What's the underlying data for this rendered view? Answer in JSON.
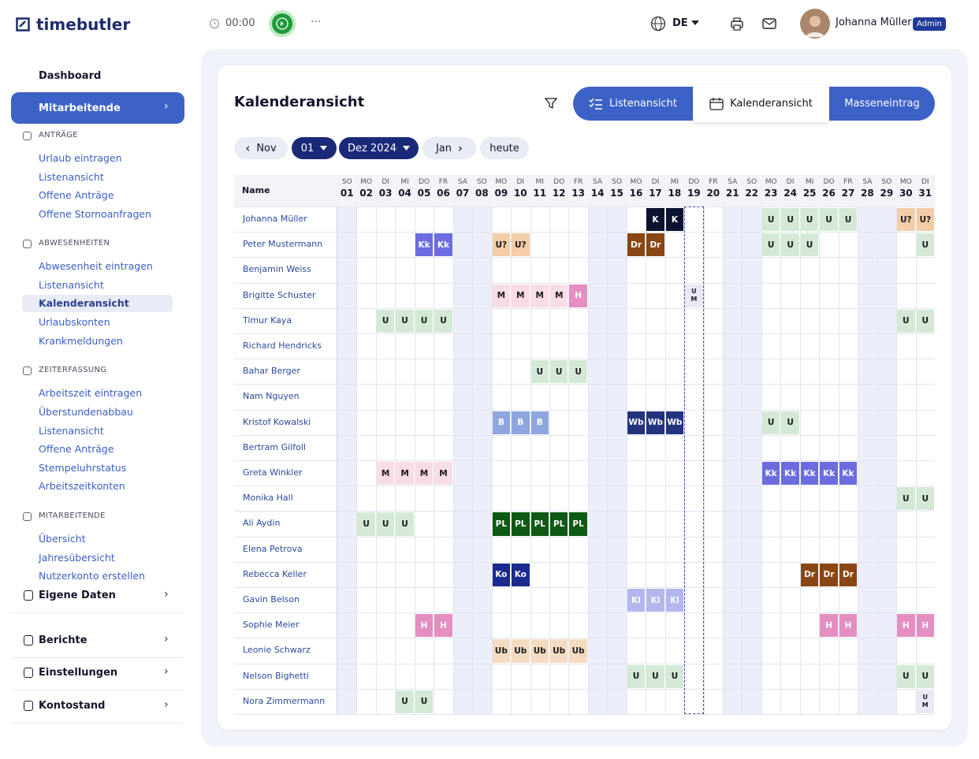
{
  "header": {
    "brand": "timebutler",
    "timer": "00:00",
    "language": "DE",
    "user_name": "Johanna Müller",
    "role": "Admin"
  },
  "sidebar": {
    "top": [
      {
        "label": "Dashboard"
      },
      {
        "label": "Mitarbeitende",
        "active": true
      }
    ],
    "sections": [
      {
        "title": "ANTRÄGE",
        "items": [
          "Urlaub eintragen",
          "Listenansicht",
          "Offene Anträge",
          "Offene Stornoanfragen"
        ]
      },
      {
        "title": "ABWESENHEITEN",
        "items": [
          "Abwesenheit eintragen",
          "Listenansicht",
          {
            "label": "Kalenderansicht",
            "active": true
          },
          "Urlaubskonten",
          "Krankmeldungen"
        ]
      },
      {
        "title": "ZEITERFASSUNG",
        "items": [
          "Arbeitszeit eintragen",
          "Überstundenabbau",
          "Listenansicht",
          "Offene Anträge",
          "Stempeluhrstatus",
          "Arbeitszeitkonten"
        ]
      },
      {
        "title": "MITARBEITENDE",
        "items": [
          "Übersicht",
          "Jahresübersicht",
          "Nutzerkonto erstellen"
        ]
      }
    ],
    "bottom": [
      "Eigene Daten",
      "Berichte",
      "Einstellungen",
      "Kontostand"
    ]
  },
  "main": {
    "title": "Kalenderansicht",
    "tabs": [
      "Listenansicht",
      "Kalenderansicht",
      "Masseneintrag"
    ],
    "nav": {
      "previous": "Nov",
      "day": "01",
      "month": "Dez 2024",
      "next": "Jan",
      "today": "heute"
    }
  },
  "calendar": {
    "name_header": "Name",
    "days": [
      {
        "weekday": "SO",
        "day": "01",
        "weekend": true
      },
      {
        "weekday": "MO",
        "day": "02"
      },
      {
        "weekday": "DI",
        "day": "03"
      },
      {
        "weekday": "MI",
        "day": "04"
      },
      {
        "weekday": "DO",
        "day": "05"
      },
      {
        "weekday": "FR",
        "day": "06"
      },
      {
        "weekday": "SA",
        "day": "07",
        "weekend": true
      },
      {
        "weekday": "SO",
        "day": "08",
        "weekend": true
      },
      {
        "weekday": "MO",
        "day": "09"
      },
      {
        "weekday": "DI",
        "day": "10"
      },
      {
        "weekday": "MI",
        "day": "11"
      },
      {
        "weekday": "DO",
        "day": "12"
      },
      {
        "weekday": "FR",
        "day": "13"
      },
      {
        "weekday": "SA",
        "day": "14",
        "weekend": true
      },
      {
        "weekday": "SO",
        "day": "15",
        "weekend": true
      },
      {
        "weekday": "MO",
        "day": "16"
      },
      {
        "weekday": "DI",
        "day": "17"
      },
      {
        "weekday": "MI",
        "day": "18"
      },
      {
        "weekday": "DO",
        "day": "19",
        "today": true
      },
      {
        "weekday": "FR",
        "day": "20"
      },
      {
        "weekday": "SA",
        "day": "21",
        "weekend": true
      },
      {
        "weekday": "SO",
        "day": "22",
        "weekend": true
      },
      {
        "weekday": "MO",
        "day": "23"
      },
      {
        "weekday": "DI",
        "day": "24"
      },
      {
        "weekday": "MI",
        "day": "25"
      },
      {
        "weekday": "DO",
        "day": "26"
      },
      {
        "weekday": "FR",
        "day": "27"
      },
      {
        "weekday": "SA",
        "day": "28",
        "weekend": true
      },
      {
        "weekday": "SO",
        "day": "29",
        "weekend": true
      },
      {
        "weekday": "MO",
        "day": "30"
      },
      {
        "weekday": "DI",
        "day": "31"
      }
    ],
    "colors": {
      "U": [
        "#d3e9d6",
        "#1b1b1b"
      ],
      "U?": [
        "#f2cda8",
        "#1b1b1b"
      ],
      "K": [
        "#0c1230",
        "#ffffff"
      ],
      "Kk": [
        "#6c6ce0",
        "#ffffff"
      ],
      "Dr": [
        "#8a4614",
        "#ffffff"
      ],
      "M": [
        "#f9dce6",
        "#1b1b1b"
      ],
      "H": [
        "#e48ec1",
        "#ffffff"
      ],
      "B": [
        "#8ea6e0",
        "#ffffff"
      ],
      "Wb": [
        "#22337f",
        "#ffffff"
      ],
      "PL": [
        "#0e5913",
        "#ffffff"
      ],
      "Ko": [
        "#1a2a8e",
        "#ffffff"
      ],
      "Kl": [
        "#b3b7ee",
        "#ffffff"
      ],
      "Ub": [
        "#f4dbc1",
        "#1b1b1b"
      ],
      "U M": [
        "#ebe7f6",
        "#1b1b1b"
      ]
    },
    "rows": [
      {
        "name": "Johanna Müller",
        "cells": [
          null,
          null,
          null,
          null,
          null,
          null,
          null,
          null,
          null,
          null,
          null,
          null,
          null,
          null,
          null,
          null,
          "K",
          "K",
          null,
          null,
          null,
          null,
          "U",
          "U",
          "U",
          "U",
          "U",
          null,
          null,
          "U?",
          "U?"
        ]
      },
      {
        "name": "Peter Mustermann",
        "cells": [
          null,
          null,
          null,
          null,
          "Kk",
          "Kk",
          null,
          null,
          "U?",
          "U?",
          null,
          null,
          null,
          null,
          null,
          "Dr",
          "Dr",
          null,
          null,
          null,
          null,
          null,
          "U",
          "U",
          "U",
          null,
          null,
          null,
          null,
          null,
          "U"
        ]
      },
      {
        "name": "Benjamin Weiss",
        "cells": [
          null,
          null,
          null,
          null,
          null,
          null,
          null,
          null,
          null,
          null,
          null,
          null,
          null,
          null,
          null,
          null,
          null,
          null,
          null,
          null,
          null,
          null,
          null,
          null,
          null,
          null,
          null,
          null,
          null,
          null,
          null
        ]
      },
      {
        "name": "Brigitte Schuster",
        "cells": [
          null,
          null,
          null,
          null,
          null,
          null,
          null,
          null,
          "M",
          "M",
          "M",
          "M",
          "H",
          null,
          null,
          null,
          null,
          null,
          "U M",
          null,
          null,
          null,
          null,
          null,
          null,
          null,
          null,
          null,
          null,
          null,
          null
        ]
      },
      {
        "name": "Timur Kaya",
        "cells": [
          null,
          null,
          "U",
          "U",
          "U",
          "U",
          null,
          null,
          null,
          null,
          null,
          null,
          null,
          null,
          null,
          null,
          null,
          null,
          null,
          null,
          null,
          null,
          null,
          null,
          null,
          null,
          null,
          null,
          null,
          "U",
          "U"
        ]
      },
      {
        "name": "Richard Hendricks",
        "cells": [
          null,
          null,
          null,
          null,
          null,
          null,
          null,
          null,
          null,
          null,
          null,
          null,
          null,
          null,
          null,
          null,
          null,
          null,
          null,
          null,
          null,
          null,
          null,
          null,
          null,
          null,
          null,
          null,
          null,
          null,
          null
        ]
      },
      {
        "name": "Bahar Berger",
        "cells": [
          null,
          null,
          null,
          null,
          null,
          null,
          null,
          null,
          null,
          null,
          "U",
          "U",
          "U",
          null,
          null,
          null,
          null,
          null,
          null,
          null,
          null,
          null,
          null,
          null,
          null,
          null,
          null,
          null,
          null,
          null,
          null
        ]
      },
      {
        "name": "Nam Nguyen",
        "cells": [
          null,
          null,
          null,
          null,
          null,
          null,
          null,
          null,
          null,
          null,
          null,
          null,
          null,
          null,
          null,
          null,
          null,
          null,
          null,
          null,
          null,
          null,
          null,
          null,
          null,
          null,
          null,
          null,
          null,
          null,
          null
        ]
      },
      {
        "name": "Kristof Kowalski",
        "cells": [
          null,
          null,
          null,
          null,
          null,
          null,
          null,
          null,
          "B",
          "B",
          "B",
          null,
          null,
          null,
          null,
          "Wb",
          "Wb",
          "Wb",
          null,
          null,
          null,
          null,
          "U",
          "U",
          null,
          null,
          null,
          null,
          null,
          null,
          null
        ]
      },
      {
        "name": "Bertram Gilfoll",
        "cells": [
          null,
          null,
          null,
          null,
          null,
          null,
          null,
          null,
          null,
          null,
          null,
          null,
          null,
          null,
          null,
          null,
          null,
          null,
          null,
          null,
          null,
          null,
          null,
          null,
          null,
          null,
          null,
          null,
          null,
          null,
          null
        ]
      },
      {
        "name": "Greta Winkler",
        "cells": [
          null,
          null,
          "M",
          "M",
          "M",
          "M",
          null,
          null,
          null,
          null,
          null,
          null,
          null,
          null,
          null,
          null,
          null,
          null,
          null,
          null,
          null,
          null,
          "Kk",
          "Kk",
          "Kk",
          "Kk",
          "Kk",
          null,
          null,
          null,
          null
        ]
      },
      {
        "name": "Monika Hall",
        "cells": [
          null,
          null,
          null,
          null,
          null,
          null,
          null,
          null,
          null,
          null,
          null,
          null,
          null,
          null,
          null,
          null,
          null,
          null,
          null,
          null,
          null,
          null,
          null,
          null,
          null,
          null,
          null,
          null,
          null,
          "U",
          "U"
        ]
      },
      {
        "name": "Ali Aydin",
        "cells": [
          null,
          "U",
          "U",
          "U",
          null,
          null,
          null,
          null,
          "PL",
          "PL",
          "PL",
          "PL",
          "PL",
          null,
          null,
          null,
          null,
          null,
          null,
          null,
          null,
          null,
          null,
          null,
          null,
          null,
          null,
          null,
          null,
          null,
          null
        ]
      },
      {
        "name": "Elena Petrova",
        "cells": [
          null,
          null,
          null,
          null,
          null,
          null,
          null,
          null,
          null,
          null,
          null,
          null,
          null,
          null,
          null,
          null,
          null,
          null,
          null,
          null,
          null,
          null,
          null,
          null,
          null,
          null,
          null,
          null,
          null,
          null,
          null
        ]
      },
      {
        "name": "Rebecca Keller",
        "cells": [
          null,
          null,
          null,
          null,
          null,
          null,
          null,
          null,
          "Ko",
          "Ko",
          null,
          null,
          null,
          null,
          null,
          null,
          null,
          null,
          null,
          null,
          null,
          null,
          null,
          null,
          "Dr",
          "Dr",
          "Dr",
          null,
          null,
          null,
          null
        ]
      },
      {
        "name": "Gavin Belson",
        "cells": [
          null,
          null,
          null,
          null,
          null,
          null,
          null,
          null,
          null,
          null,
          null,
          null,
          null,
          null,
          null,
          "Kl",
          "Kl",
          "Kl",
          null,
          null,
          null,
          null,
          null,
          null,
          null,
          null,
          null,
          null,
          null,
          null,
          null
        ]
      },
      {
        "name": "Sophie Meier",
        "cells": [
          null,
          null,
          null,
          null,
          "H",
          "H",
          null,
          null,
          null,
          null,
          null,
          null,
          null,
          null,
          null,
          null,
          null,
          null,
          null,
          null,
          null,
          null,
          null,
          null,
          null,
          "H",
          "H",
          null,
          null,
          "H",
          "H"
        ]
      },
      {
        "name": "Leonie Schwarz",
        "cells": [
          null,
          null,
          null,
          null,
          null,
          null,
          null,
          null,
          "Ub",
          "Ub",
          "Ub",
          "Ub",
          "Ub",
          null,
          null,
          null,
          null,
          null,
          null,
          null,
          null,
          null,
          null,
          null,
          null,
          null,
          null,
          null,
          null,
          null,
          null
        ]
      },
      {
        "name": "Nelson Bighetti",
        "cells": [
          null,
          null,
          null,
          null,
          null,
          null,
          null,
          null,
          null,
          null,
          null,
          null,
          null,
          null,
          null,
          "U",
          "U",
          "U",
          null,
          null,
          null,
          null,
          null,
          null,
          null,
          null,
          null,
          null,
          null,
          "U",
          "U"
        ]
      },
      {
        "name": "Nora Zimmermann",
        "cells": [
          null,
          null,
          null,
          "U",
          "U",
          null,
          null,
          null,
          null,
          null,
          null,
          null,
          null,
          null,
          null,
          null,
          null,
          null,
          null,
          null,
          null,
          null,
          null,
          null,
          null,
          null,
          null,
          null,
          null,
          null,
          "U M"
        ]
      }
    ]
  }
}
